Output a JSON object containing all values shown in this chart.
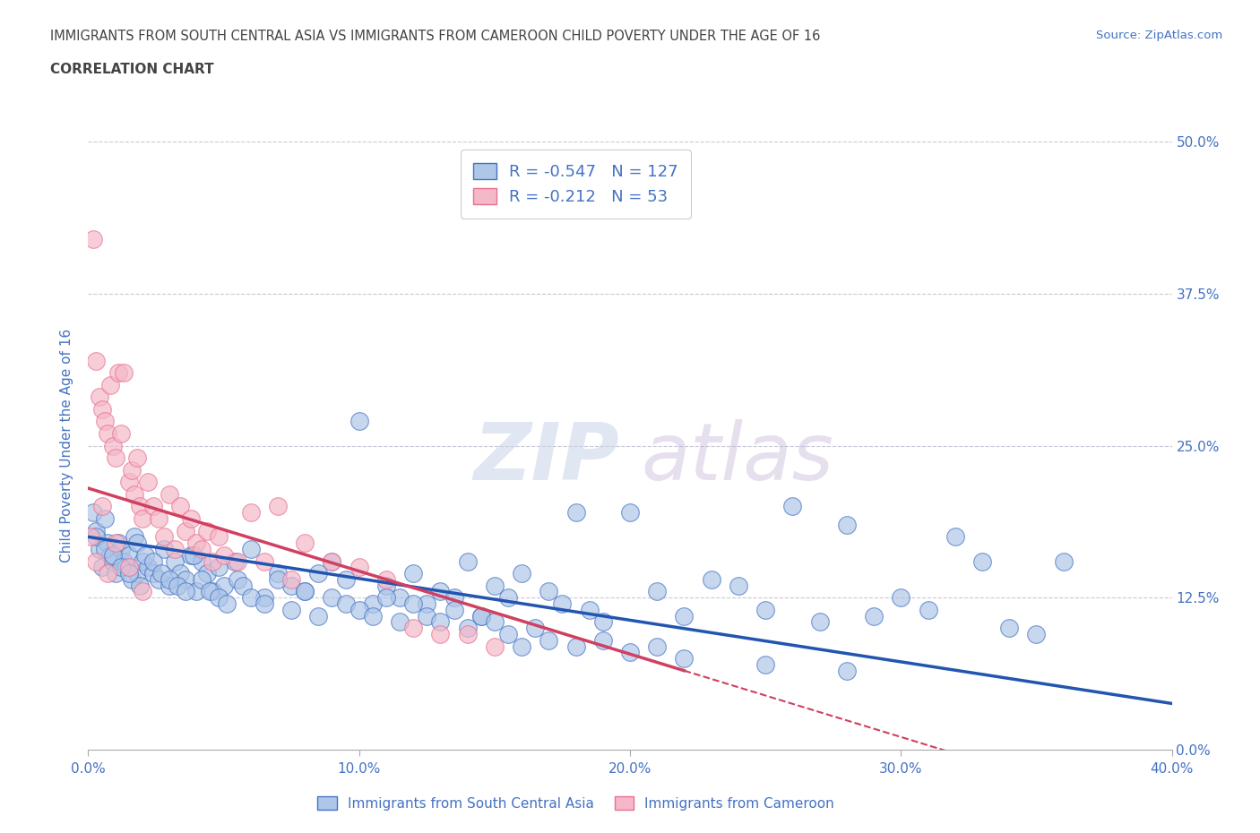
{
  "title_line1": "IMMIGRANTS FROM SOUTH CENTRAL ASIA VS IMMIGRANTS FROM CAMEROON CHILD POVERTY UNDER THE AGE OF 16",
  "title_line2": "CORRELATION CHART",
  "source_text": "Source: ZipAtlas.com",
  "watermark_zip": "ZIP",
  "watermark_atlas": "atlas",
  "ylabel": "Child Poverty Under the Age of 16",
  "xlim": [
    0.0,
    0.4
  ],
  "ylim": [
    0.0,
    0.5
  ],
  "xticks": [
    0.0,
    0.1,
    0.2,
    0.3,
    0.4
  ],
  "xtick_labels": [
    "0.0%",
    "10.0%",
    "20.0%",
    "30.0%",
    "40.0%"
  ],
  "ytick_labels_right": [
    "0.0%",
    "12.5%",
    "25.0%",
    "37.5%",
    "50.0%"
  ],
  "yticks_right": [
    0.0,
    0.125,
    0.25,
    0.375,
    0.5
  ],
  "grid_color": "#c8c8d8",
  "background_color": "#ffffff",
  "title_color": "#444444",
  "axis_color": "#4472c4",
  "series1_fill": "#aec6e8",
  "series1_edge": "#4472c4",
  "series2_fill": "#f4b8c8",
  "series2_edge": "#e87090",
  "trendline1_color": "#2255b0",
  "trendline2_color": "#d04060",
  "series1_label": "Immigrants from South Central Asia",
  "series2_label": "Immigrants from Cameroon",
  "R1": -0.547,
  "N1": 127,
  "R2": -0.212,
  "N2": 53,
  "trendline1_x0": 0.0,
  "trendline1_y0": 0.175,
  "trendline1_x1": 0.4,
  "trendline1_y1": 0.038,
  "trendline2_x0": 0.0,
  "trendline2_y0": 0.215,
  "trendline2_x1": 0.22,
  "trendline2_y1": 0.065,
  "scatter1_x": [
    0.002,
    0.003,
    0.004,
    0.005,
    0.006,
    0.007,
    0.008,
    0.009,
    0.01,
    0.011,
    0.012,
    0.013,
    0.014,
    0.015,
    0.016,
    0.017,
    0.018,
    0.019,
    0.02,
    0.022,
    0.024,
    0.026,
    0.028,
    0.03,
    0.032,
    0.034,
    0.036,
    0.038,
    0.04,
    0.042,
    0.044,
    0.046,
    0.048,
    0.05,
    0.055,
    0.06,
    0.065,
    0.07,
    0.075,
    0.08,
    0.085,
    0.09,
    0.095,
    0.1,
    0.105,
    0.11,
    0.115,
    0.12,
    0.125,
    0.13,
    0.135,
    0.14,
    0.145,
    0.15,
    0.155,
    0.16,
    0.165,
    0.17,
    0.175,
    0.18,
    0.185,
    0.19,
    0.2,
    0.21,
    0.22,
    0.23,
    0.24,
    0.25,
    0.26,
    0.27,
    0.28,
    0.29,
    0.3,
    0.31,
    0.32,
    0.33,
    0.34,
    0.35,
    0.36,
    0.003,
    0.006,
    0.009,
    0.012,
    0.015,
    0.018,
    0.021,
    0.024,
    0.027,
    0.03,
    0.033,
    0.036,
    0.039,
    0.042,
    0.045,
    0.048,
    0.051,
    0.054,
    0.057,
    0.06,
    0.065,
    0.07,
    0.075,
    0.08,
    0.085,
    0.09,
    0.095,
    0.1,
    0.105,
    0.11,
    0.115,
    0.12,
    0.125,
    0.13,
    0.135,
    0.14,
    0.145,
    0.15,
    0.155,
    0.16,
    0.17,
    0.18,
    0.19,
    0.2,
    0.21,
    0.22,
    0.25,
    0.28
  ],
  "scatter1_y": [
    0.195,
    0.18,
    0.165,
    0.15,
    0.19,
    0.17,
    0.16,
    0.155,
    0.145,
    0.17,
    0.165,
    0.155,
    0.15,
    0.16,
    0.14,
    0.175,
    0.145,
    0.135,
    0.155,
    0.15,
    0.145,
    0.14,
    0.165,
    0.135,
    0.155,
    0.145,
    0.14,
    0.16,
    0.13,
    0.155,
    0.145,
    0.13,
    0.15,
    0.135,
    0.14,
    0.165,
    0.125,
    0.145,
    0.135,
    0.13,
    0.145,
    0.155,
    0.14,
    0.27,
    0.12,
    0.135,
    0.125,
    0.145,
    0.12,
    0.13,
    0.125,
    0.155,
    0.11,
    0.135,
    0.125,
    0.145,
    0.1,
    0.13,
    0.12,
    0.195,
    0.115,
    0.105,
    0.195,
    0.13,
    0.11,
    0.14,
    0.135,
    0.115,
    0.2,
    0.105,
    0.185,
    0.11,
    0.125,
    0.115,
    0.175,
    0.155,
    0.1,
    0.095,
    0.155,
    0.175,
    0.165,
    0.16,
    0.15,
    0.145,
    0.17,
    0.16,
    0.155,
    0.145,
    0.14,
    0.135,
    0.13,
    0.16,
    0.14,
    0.13,
    0.125,
    0.12,
    0.155,
    0.135,
    0.125,
    0.12,
    0.14,
    0.115,
    0.13,
    0.11,
    0.125,
    0.12,
    0.115,
    0.11,
    0.125,
    0.105,
    0.12,
    0.11,
    0.105,
    0.115,
    0.1,
    0.11,
    0.105,
    0.095,
    0.085,
    0.09,
    0.085,
    0.09,
    0.08,
    0.085,
    0.075,
    0.07,
    0.065
  ],
  "scatter2_x": [
    0.002,
    0.003,
    0.004,
    0.005,
    0.006,
    0.007,
    0.008,
    0.009,
    0.01,
    0.011,
    0.012,
    0.013,
    0.015,
    0.016,
    0.017,
    0.018,
    0.019,
    0.02,
    0.022,
    0.024,
    0.026,
    0.028,
    0.03,
    0.032,
    0.034,
    0.036,
    0.038,
    0.04,
    0.042,
    0.044,
    0.046,
    0.048,
    0.05,
    0.055,
    0.06,
    0.065,
    0.07,
    0.075,
    0.08,
    0.09,
    0.1,
    0.11,
    0.12,
    0.13,
    0.14,
    0.15,
    0.001,
    0.003,
    0.005,
    0.007,
    0.01,
    0.015,
    0.02
  ],
  "scatter2_y": [
    0.42,
    0.32,
    0.29,
    0.28,
    0.27,
    0.26,
    0.3,
    0.25,
    0.24,
    0.31,
    0.26,
    0.31,
    0.22,
    0.23,
    0.21,
    0.24,
    0.2,
    0.19,
    0.22,
    0.2,
    0.19,
    0.175,
    0.21,
    0.165,
    0.2,
    0.18,
    0.19,
    0.17,
    0.165,
    0.18,
    0.155,
    0.175,
    0.16,
    0.155,
    0.195,
    0.155,
    0.2,
    0.14,
    0.17,
    0.155,
    0.15,
    0.14,
    0.1,
    0.095,
    0.095,
    0.085,
    0.175,
    0.155,
    0.2,
    0.145,
    0.17,
    0.15,
    0.13
  ]
}
